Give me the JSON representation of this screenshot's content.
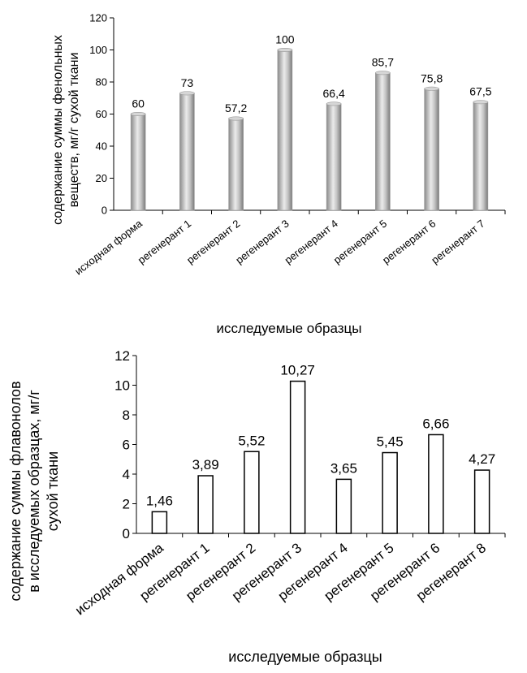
{
  "chart_data": [
    {
      "type": "bar",
      "categories": [
        "исходная форма",
        "регенерант 1",
        "регенерант 2",
        "регенерант 3",
        "регенерант 4",
        "регенерант 5",
        "регенерант 6",
        "регенерант 7"
      ],
      "values": [
        60,
        73,
        57.2,
        100,
        66.4,
        85.7,
        75.8,
        67.5
      ],
      "value_labels": [
        "60",
        "73",
        "57,2",
        "100",
        "66,4",
        "85,7",
        "75,8",
        "67,5"
      ],
      "ylabel_lines": [
        "содержание суммы фенольных",
        "веществ, мг/г сухой ткани"
      ],
      "xlabel": "исследуемые образцы",
      "ylim": [
        0,
        120
      ],
      "yticks": [
        0,
        20,
        40,
        60,
        80,
        100,
        120
      ],
      "ytick_labels": [
        "0",
        "20",
        "40",
        "60",
        "80",
        "100",
        "120"
      ],
      "bar_style": "gray cylindrical",
      "colors": {
        "bar_dark": "#8a8a8a",
        "bar_light": "#e8e8e8"
      }
    },
    {
      "type": "bar",
      "categories": [
        "исходная форма",
        "регенерант 1",
        "регенерант 2",
        "регенерант 3",
        "регенерант 4",
        "регенерант 5",
        "регенерант 6",
        "регенерант 8"
      ],
      "values": [
        1.46,
        3.89,
        5.52,
        10.27,
        3.65,
        5.45,
        6.66,
        4.27
      ],
      "value_labels": [
        "1,46",
        "3,89",
        "5,52",
        "10,27",
        "3,65",
        "5,45",
        "6,66",
        "4,27"
      ],
      "ylabel_lines": [
        "содержание  суммы флавонолов",
        "в исследуемых образцах, мг/г",
        "сухой ткани"
      ],
      "xlabel": "исследуемые образцы",
      "ylim": [
        0,
        12
      ],
      "yticks": [
        0,
        2,
        4,
        6,
        8,
        10,
        12
      ],
      "ytick_labels": [
        "0",
        "2",
        "4",
        "6",
        "8",
        "10",
        "12"
      ],
      "bar_style": "white outlined",
      "colors": {
        "bar_fill": "#ffffff",
        "bar_stroke": "#000000"
      }
    }
  ]
}
